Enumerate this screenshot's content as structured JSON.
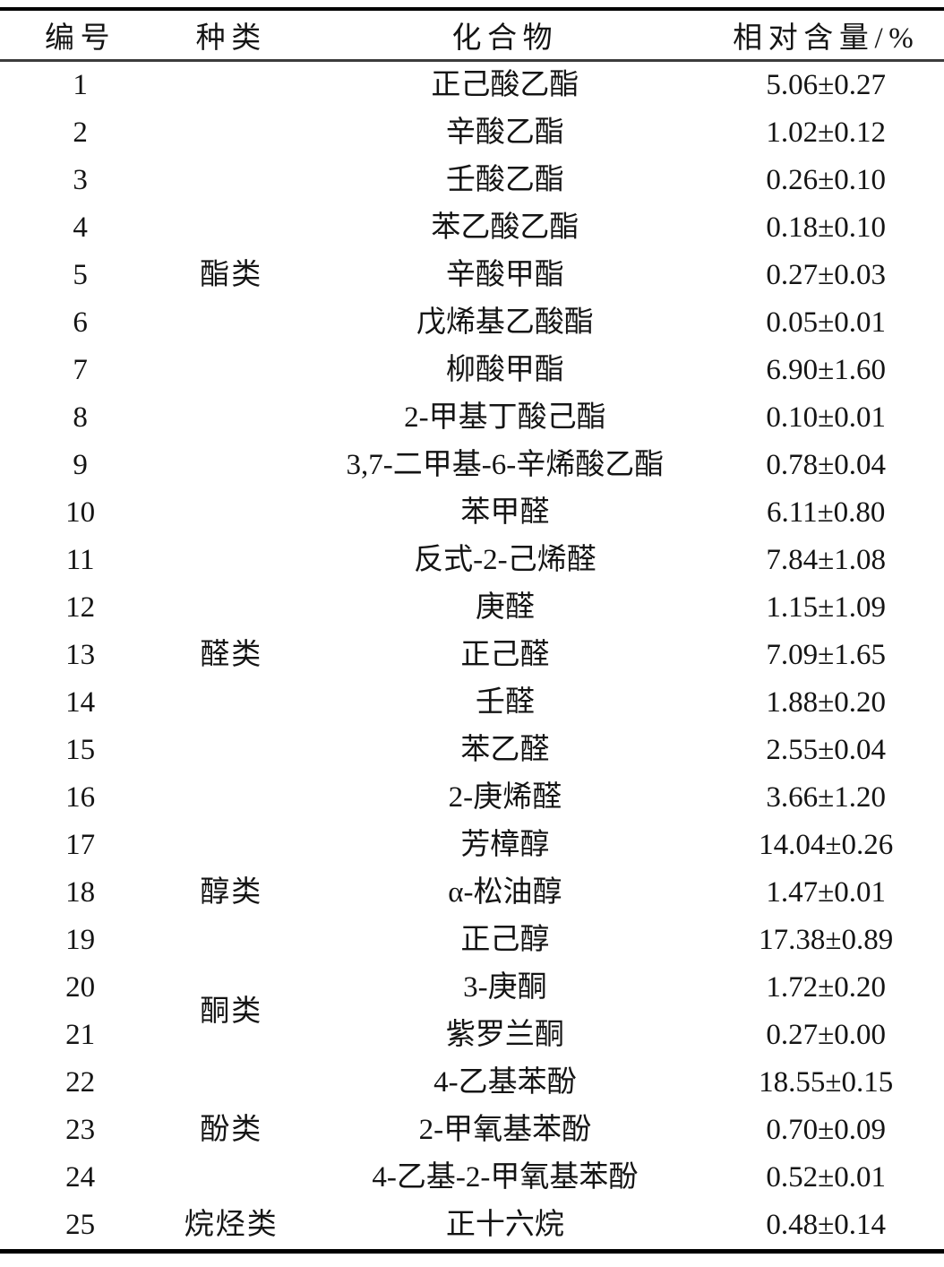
{
  "table": {
    "header": {
      "no": "编号",
      "category": "种类",
      "compound": "化合物",
      "content": "相对含量/%"
    },
    "groups": [
      {
        "category": "酯类",
        "rows": [
          {
            "no": "1",
            "compound": "正己酸乙酯",
            "content": "5.06±0.27"
          },
          {
            "no": "2",
            "compound": "辛酸乙酯",
            "content": "1.02±0.12"
          },
          {
            "no": "3",
            "compound": "壬酸乙酯",
            "content": "0.26±0.10"
          },
          {
            "no": "4",
            "compound": "苯乙酸乙酯",
            "content": "0.18±0.10"
          },
          {
            "no": "5",
            "compound": "辛酸甲酯",
            "content": "0.27±0.03"
          },
          {
            "no": "6",
            "compound": "戊烯基乙酸酯",
            "content": "0.05±0.01"
          },
          {
            "no": "7",
            "compound": "柳酸甲酯",
            "content": "6.90±1.60"
          },
          {
            "no": "8",
            "compound": "2-甲基丁酸己酯",
            "content": "0.10±0.01"
          },
          {
            "no": "9",
            "compound": "3,7-二甲基-6-辛烯酸乙酯",
            "content": "0.78±0.04"
          }
        ]
      },
      {
        "category": "醛类",
        "rows": [
          {
            "no": "10",
            "compound": "苯甲醛",
            "content": "6.11±0.80"
          },
          {
            "no": "11",
            "compound": "反式-2-己烯醛",
            "content": "7.84±1.08"
          },
          {
            "no": "12",
            "compound": "庚醛",
            "content": "1.15±1.09"
          },
          {
            "no": "13",
            "compound": "正己醛",
            "content": "7.09±1.65"
          },
          {
            "no": "14",
            "compound": "壬醛",
            "content": "1.88±0.20"
          },
          {
            "no": "15",
            "compound": "苯乙醛",
            "content": "2.55±0.04"
          },
          {
            "no": "16",
            "compound": "2-庚烯醛",
            "content": "3.66±1.20"
          }
        ]
      },
      {
        "category": "醇类",
        "rows": [
          {
            "no": "17",
            "compound": "芳樟醇",
            "content": "14.04±0.26"
          },
          {
            "no": "18",
            "compound": "α-松油醇",
            "content": "1.47±0.01"
          },
          {
            "no": "19",
            "compound": "正己醇",
            "content": "17.38±0.89"
          }
        ]
      },
      {
        "category": "酮类",
        "rows": [
          {
            "no": "20",
            "compound": "3-庚酮",
            "content": "1.72±0.20"
          },
          {
            "no": "21",
            "compound": "紫罗兰酮",
            "content": "0.27±0.00"
          }
        ]
      },
      {
        "category": "酚类",
        "rows": [
          {
            "no": "22",
            "compound": "4-乙基苯酚",
            "content": "18.55±0.15"
          },
          {
            "no": "23",
            "compound": "2-甲氧基苯酚",
            "content": "0.70±0.09"
          },
          {
            "no": "24",
            "compound": "4-乙基-2-甲氧基苯酚",
            "content": "0.52±0.01"
          }
        ]
      },
      {
        "category": "烷烃类",
        "rows": [
          {
            "no": "25",
            "compound": "正十六烷",
            "content": "0.48±0.14"
          }
        ]
      }
    ]
  }
}
